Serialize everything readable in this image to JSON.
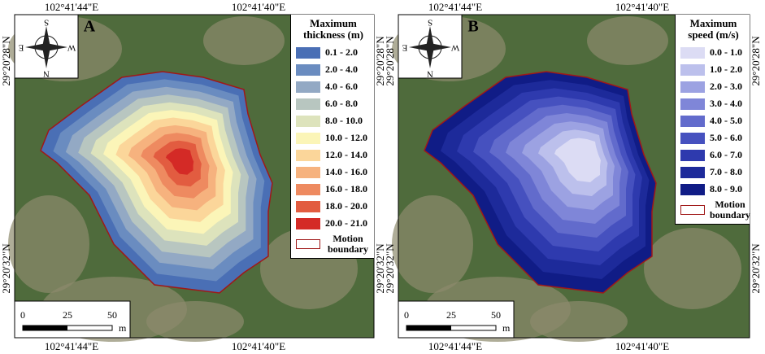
{
  "panels": [
    {
      "label": "A",
      "legend_title": "Maximum thickness (m)",
      "boundary_label": "Motion boundary",
      "items": [
        {
          "label": "0.1 - 2.0",
          "color": "#4a6fb5"
        },
        {
          "label": "2.0 - 4.0",
          "color": "#6a8cc0"
        },
        {
          "label": "4.0 - 6.0",
          "color": "#93a9c4"
        },
        {
          "label": "6.0 - 8.0",
          "color": "#b8c6c0"
        },
        {
          "label": "8.0 - 10.0",
          "color": "#dde3bc"
        },
        {
          "label": "10.0 - 12.0",
          "color": "#fbf5b8"
        },
        {
          "label": "12.0 - 14.0",
          "color": "#fbd69a"
        },
        {
          "label": "14.0 - 16.0",
          "color": "#f6b27e"
        },
        {
          "label": "16.0 - 18.0",
          "color": "#ee8a60"
        },
        {
          "label": "18.0 - 20.0",
          "color": "#e25c40"
        },
        {
          "label": "20.0 - 21.0",
          "color": "#d42a26"
        }
      ]
    },
    {
      "label": "B",
      "legend_title": "Maximum speed (m/s)",
      "boundary_label": "Motion boundary",
      "items": [
        {
          "label": "0.0 - 1.0",
          "color": "#dcdcf4"
        },
        {
          "label": "1.0 - 2.0",
          "color": "#bcc0ec"
        },
        {
          "label": "2.0 - 3.0",
          "color": "#9ca2e2"
        },
        {
          "label": "3.0 - 4.0",
          "color": "#7f86d8"
        },
        {
          "label": "4.0 - 5.0",
          "color": "#626bcc"
        },
        {
          "label": "5.0 - 6.0",
          "color": "#4651bf"
        },
        {
          "label": "6.0 - 7.0",
          "color": "#2e3aae"
        },
        {
          "label": "7.0 - 8.0",
          "color": "#1d2a9a"
        },
        {
          "label": "8.0 - 9.0",
          "color": "#101c86"
        }
      ]
    }
  ],
  "coordinates": {
    "lon_left": "102°41'44\"E",
    "lon_right": "102°41'40\"E",
    "lat_top": "29°20'28\"N",
    "lat_bottom": "29°20'32\"N"
  },
  "compass": {
    "s": "S",
    "w": "W",
    "n": "N",
    "e": "E"
  },
  "scale_bar": {
    "ticks": [
      "0",
      "25",
      "50"
    ],
    "unit": "m"
  }
}
